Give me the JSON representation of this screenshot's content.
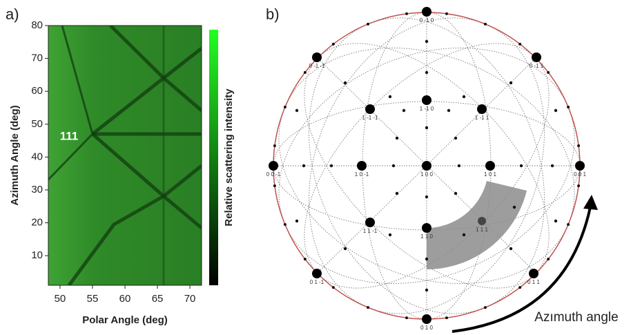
{
  "chart_data": {
    "type": "heatmap",
    "panel_label": "a)",
    "x_label": "Polar Angle (deg)",
    "y_label": "Azimuth Angle (deg)",
    "colorbar_label": "Relative scattering intensity",
    "annotation": "111",
    "xlim": [
      48.2,
      71.8
    ],
    "ylim": [
      1,
      80
    ],
    "xticks": [
      50,
      55,
      60,
      65,
      70
    ],
    "yticks": [
      10,
      20,
      30,
      40,
      50,
      60,
      70,
      80
    ]
  },
  "diagram": {
    "panel_label": "b)",
    "annotation": "Azımuth angle",
    "nodes": [
      {
        "label": "0 -1 0"
      },
      {
        "label": "0 -1 -1"
      },
      {
        "label": "0 -1 1"
      },
      {
        "label": "1 -1 0"
      },
      {
        "label": "1 -1 -1"
      },
      {
        "label": "1 -1 1"
      },
      {
        "label": "0 0 -1"
      },
      {
        "label": "1 0 -1"
      },
      {
        "label": "1 0 0"
      },
      {
        "label": "1 0 1"
      },
      {
        "label": "0 0 1"
      },
      {
        "label": "1 1 -1"
      },
      {
        "label": "1 1 0"
      },
      {
        "label": "1 1 1"
      },
      {
        "label": "0 1 -1"
      },
      {
        "label": "0 1 1"
      },
      {
        "label": "0 1 0"
      }
    ]
  }
}
